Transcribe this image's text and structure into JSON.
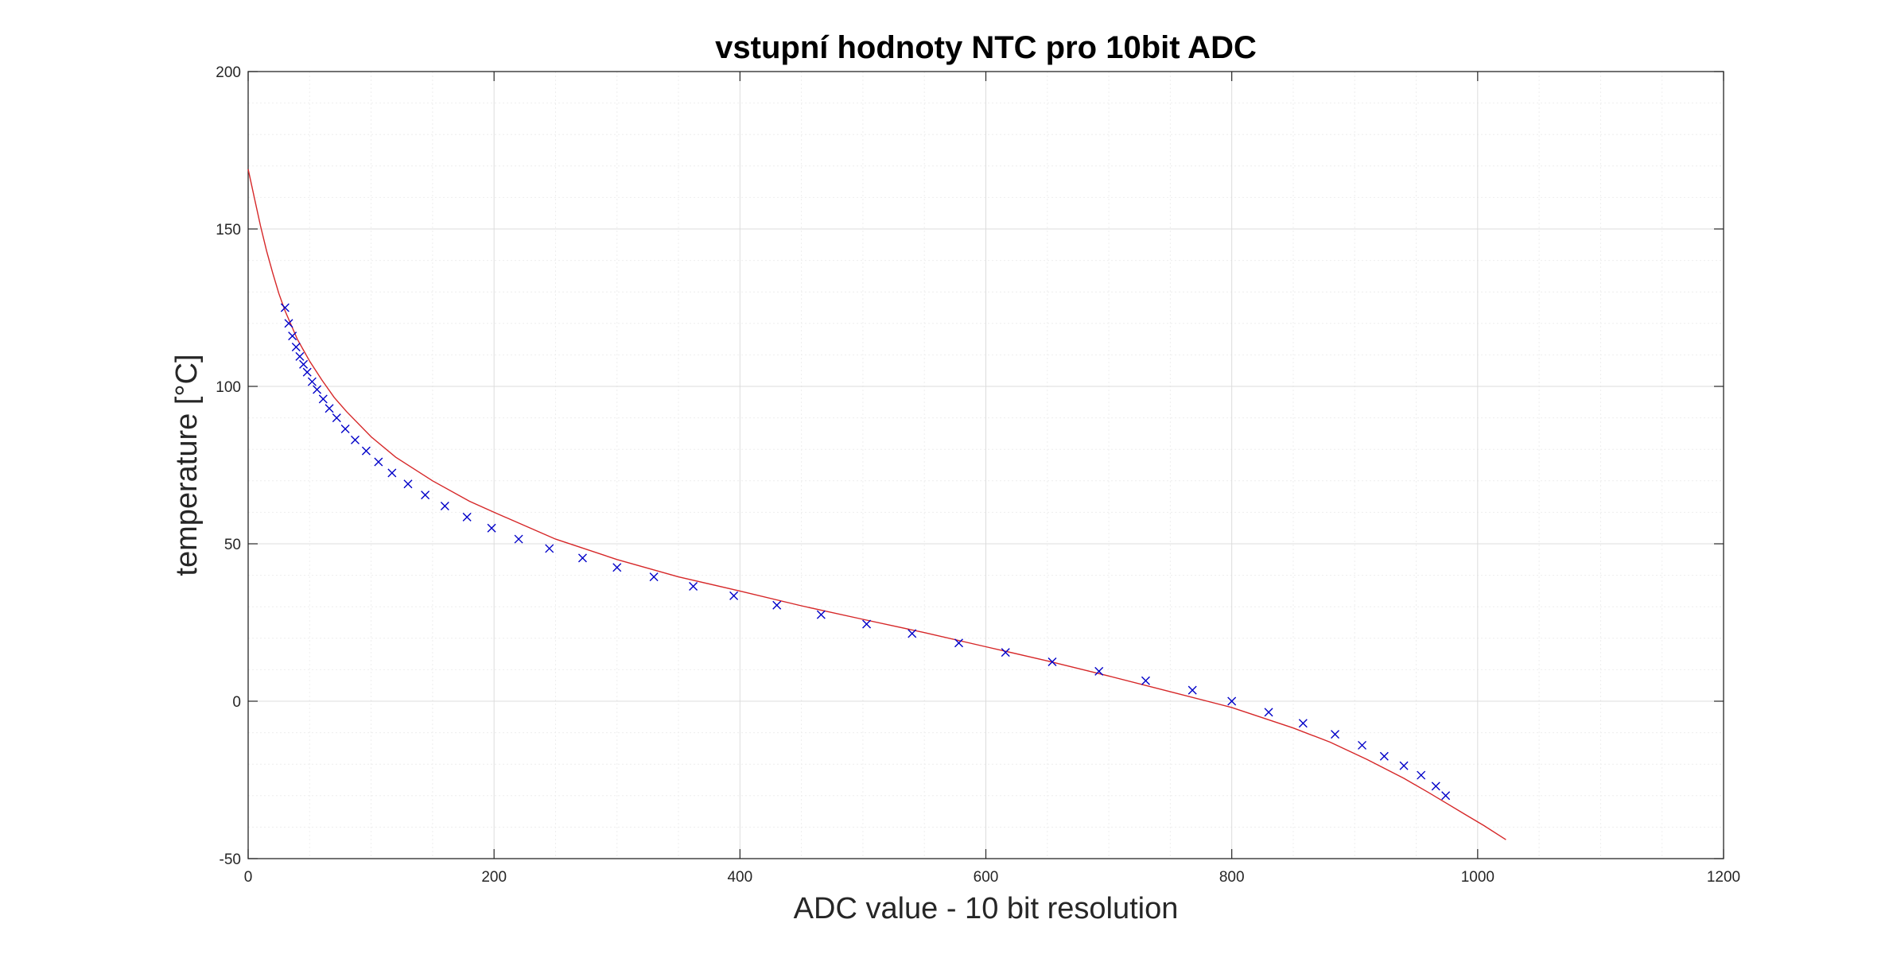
{
  "chart_data": {
    "type": "scatter",
    "title": "vstupní hodnoty NTC pro 10bit ADC",
    "xlabel": "ADC value - 10 bit resolution",
    "ylabel": "temperature [°C]",
    "xlim": [
      0,
      1200
    ],
    "ylim": [
      -50,
      200
    ],
    "xticks": [
      0,
      200,
      400,
      600,
      800,
      1000,
      1200
    ],
    "yticks": [
      -50,
      0,
      50,
      100,
      150,
      200
    ],
    "grid": true,
    "minor_grid": true,
    "box": true,
    "colors": {
      "markers": "#0000c8",
      "fit": "#d62728",
      "axes": "#262626",
      "grid": "#dcdcdc",
      "minor_grid": "#eeeeee"
    },
    "series": [
      {
        "marker": "x",
        "color": "#0000c8",
        "x": [
          30,
          33,
          36,
          39,
          42,
          45,
          48,
          52,
          56,
          61,
          66,
          72,
          79,
          87,
          96,
          106,
          117,
          130,
          144,
          160,
          178,
          198,
          220,
          245,
          272,
          300,
          330,
          362,
          395,
          430,
          466,
          503,
          540,
          578,
          616,
          654,
          692,
          730,
          768,
          800,
          830,
          858,
          884,
          906,
          924,
          940,
          954,
          966,
          974
        ],
        "y": [
          125,
          120,
          116,
          112.5,
          109.5,
          107,
          104.5,
          101.5,
          99,
          96,
          93,
          90,
          86.5,
          83,
          79.5,
          76,
          72.5,
          69,
          65.5,
          62,
          58.5,
          55,
          51.5,
          48.5,
          45.5,
          42.5,
          39.5,
          36.5,
          33.5,
          30.5,
          27.5,
          24.5,
          21.5,
          18.5,
          15.5,
          12.5,
          9.5,
          6.5,
          3.5,
          0,
          -3.5,
          -7,
          -10.5,
          -14,
          -17.5,
          -20.5,
          -23.5,
          -27,
          -30
        ]
      },
      {
        "marker": "none",
        "color": "#d62728",
        "x": [
          0,
          5,
          10,
          15,
          20,
          25,
          30,
          40,
          50,
          60,
          70,
          80,
          100,
          120,
          150,
          180,
          200,
          250,
          300,
          350,
          400,
          450,
          500,
          550,
          600,
          650,
          700,
          750,
          800,
          850,
          880,
          910,
          940,
          960,
          975,
          990,
          1005,
          1023
        ],
        "y": [
          169,
          160,
          151,
          143,
          136,
          129.5,
          124,
          115,
          108,
          102,
          96.5,
          92,
          84,
          77.5,
          70,
          63.5,
          60,
          51.5,
          45,
          39.5,
          35,
          30.3,
          26,
          21.8,
          17.3,
          12.8,
          8,
          3,
          -2,
          -8.5,
          -13,
          -18.5,
          -24.5,
          -29,
          -32.5,
          -36,
          -39.5,
          -44
        ]
      }
    ]
  }
}
